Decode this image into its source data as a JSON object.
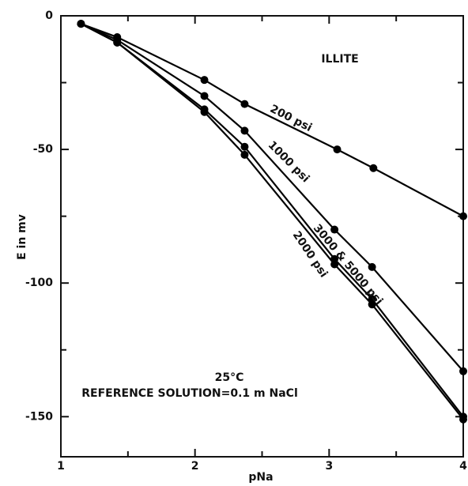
{
  "chart_data": {
    "type": "line",
    "xlabel": "pNa",
    "ylabel": "E in mv",
    "annotations": [
      "ILLITE",
      "200 psi",
      "1000 psi",
      "3000 & 5000 psi",
      "2000 psi",
      "25°C",
      "REFERENCE SOLUTION=0.1 m NaCl"
    ],
    "xlim": [
      1,
      4
    ],
    "xticks": [
      1,
      2,
      3,
      4
    ],
    "xminorticks": [
      1.5,
      2.5,
      3.5
    ],
    "ylim": [
      -165,
      0
    ],
    "yticks": [
      0,
      -50,
      -100,
      -150
    ],
    "yminorticks": [
      -25,
      -75,
      -125
    ],
    "grid": false,
    "series": [
      {
        "name": "200 psi",
        "color": "#000000",
        "x": [
          1.15,
          1.42,
          2.07,
          2.37,
          3.06,
          3.33,
          4
        ],
        "values": [
          -3,
          -8,
          -24,
          -33,
          -50,
          -57,
          -75
        ]
      },
      {
        "name": "1000 psi",
        "color": "#000000",
        "x": [
          1.15,
          1.42,
          2.07,
          2.37,
          3.04,
          3.32,
          4
        ],
        "values": [
          -3,
          -9,
          -30,
          -43,
          -80,
          -94,
          -133
        ]
      },
      {
        "name": "3000 & 5000 psi",
        "color": "#000000",
        "x": [
          1.15,
          1.42,
          2.07,
          2.37,
          3.04,
          3.32,
          4
        ],
        "values": [
          -3,
          -10,
          -35,
          -49,
          -91,
          -106,
          -150
        ]
      },
      {
        "name": "2000 psi",
        "color": "#000000",
        "x": [
          1.15,
          1.42,
          2.07,
          2.37,
          3.04,
          3.32,
          4
        ],
        "values": [
          -3,
          -10,
          -36,
          -52,
          -93,
          -108,
          -151
        ]
      }
    ]
  }
}
